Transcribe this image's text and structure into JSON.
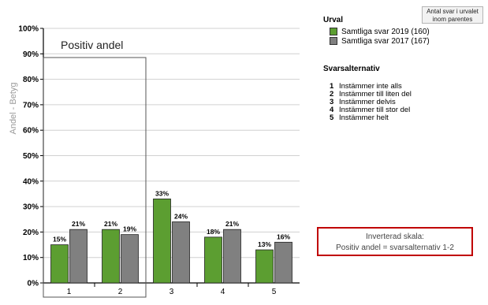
{
  "chart_data": {
    "type": "bar",
    "ylabel": "Andel - Betyg",
    "ylim": [
      0,
      100
    ],
    "yticks": [
      "0%",
      "10%",
      "20%",
      "30%",
      "40%",
      "50%",
      "60%",
      "70%",
      "80%",
      "90%",
      "100%"
    ],
    "categories": [
      "1",
      "2",
      "3",
      "4",
      "5"
    ],
    "series": [
      {
        "name": "Samtliga svar 2019 (160)",
        "color": "#5c9e31",
        "values": [
          15,
          21,
          33,
          18,
          13
        ],
        "labels": [
          "15%",
          "21%",
          "33%",
          "18%",
          "13%"
        ]
      },
      {
        "name": "Samtliga svar 2017 (167)",
        "color": "#808080",
        "values": [
          21,
          19,
          24,
          21,
          16
        ],
        "labels": [
          "21%",
          "19%",
          "24%",
          "21%",
          "16%"
        ]
      }
    ],
    "highlight": {
      "label": "Positiv andel",
      "categories": [
        "1",
        "2"
      ]
    },
    "grid": true
  },
  "legend": {
    "title": "Urval",
    "note": [
      "Antal svar i urvalet",
      "inom parentes"
    ]
  },
  "alternatives": {
    "title": "Svarsalternativ",
    "items": [
      {
        "num": "1",
        "text": "Instämmer inte alls"
      },
      {
        "num": "2",
        "text": "Instämmer till liten del"
      },
      {
        "num": "3",
        "text": "Instämmer delvis"
      },
      {
        "num": "4",
        "text": "Instämmer till stor del"
      },
      {
        "num": "5",
        "text": "Instämmer helt"
      }
    ]
  },
  "scale_note": [
    "Inverterad skala:",
    "Positiv andel = svarsalternativ 1-2"
  ]
}
